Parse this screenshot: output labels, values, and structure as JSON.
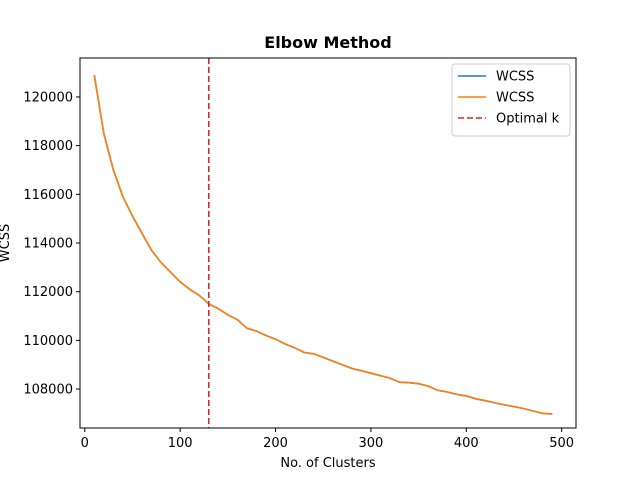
{
  "chart_data": {
    "type": "line",
    "title": "Elbow Method",
    "xlabel": "No. of Clusters",
    "ylabel": "WCSS",
    "xlim": [
      -5,
      515
    ],
    "ylim": [
      106400,
      121600
    ],
    "xticks": [
      0,
      100,
      200,
      300,
      400,
      500
    ],
    "yticks": [
      108000,
      110000,
      112000,
      114000,
      116000,
      118000,
      120000
    ],
    "grid": false,
    "legend_position": "top-right",
    "x": [
      10,
      20,
      30,
      40,
      50,
      60,
      70,
      80,
      90,
      100,
      110,
      120,
      130,
      140,
      150,
      160,
      170,
      180,
      190,
      200,
      210,
      220,
      230,
      240,
      250,
      260,
      270,
      280,
      290,
      300,
      310,
      320,
      330,
      340,
      350,
      360,
      370,
      380,
      390,
      400,
      410,
      420,
      430,
      440,
      450,
      460,
      470,
      480,
      490
    ],
    "series": [
      {
        "name": "WCSS",
        "color": "#1f77b4",
        "values": [
          120900,
          118500,
          117000,
          115900,
          115100,
          114400,
          113700,
          113200,
          112800,
          112400,
          112100,
          111850,
          111500,
          111300,
          111050,
          110850,
          110500,
          110380,
          110200,
          110050,
          109850,
          109700,
          109500,
          109450,
          109300,
          109150,
          109000,
          108850,
          108750,
          108650,
          108550,
          108450,
          108280,
          108260,
          108220,
          108120,
          107950,
          107880,
          107780,
          107720,
          107600,
          107520,
          107430,
          107350,
          107280,
          107200,
          107100,
          107000,
          106980
        ]
      },
      {
        "name": "WCSS",
        "color": "#ff7f0e",
        "values": [
          120900,
          118500,
          117000,
          115900,
          115100,
          114400,
          113700,
          113200,
          112800,
          112400,
          112100,
          111850,
          111500,
          111300,
          111050,
          110850,
          110500,
          110380,
          110200,
          110050,
          109850,
          109700,
          109500,
          109450,
          109300,
          109150,
          109000,
          108850,
          108750,
          108650,
          108550,
          108450,
          108280,
          108260,
          108220,
          108120,
          107950,
          107880,
          107780,
          107720,
          107600,
          107520,
          107430,
          107350,
          107280,
          107200,
          107100,
          107000,
          106980
        ]
      }
    ],
    "reference_lines": [
      {
        "name": "Optimal k",
        "orientation": "vertical",
        "x": 130,
        "color": "#d62728",
        "style": "dashed"
      }
    ]
  }
}
